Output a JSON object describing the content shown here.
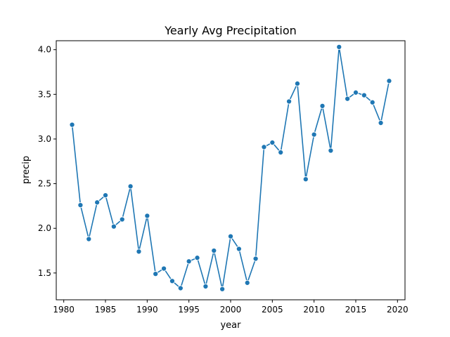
{
  "chart_data": {
    "type": "line",
    "title": "Yearly Avg Precipitation",
    "xlabel": "year",
    "ylabel": "precip",
    "xlim": [
      1979.1,
      2020.9
    ],
    "ylim": [
      1.2,
      4.1
    ],
    "xticks": [
      1980,
      1985,
      1990,
      1995,
      2000,
      2005,
      2010,
      2015,
      2020
    ],
    "xtick_labels": [
      "1980",
      "1985",
      "1990",
      "1995",
      "2000",
      "2005",
      "2010",
      "2015",
      "2020"
    ],
    "yticks": [
      1.5,
      2.0,
      2.5,
      3.0,
      3.5,
      4.0
    ],
    "ytick_labels": [
      "1.5",
      "2.0",
      "2.5",
      "3.0",
      "3.5",
      "4.0"
    ],
    "grid": false,
    "series": [
      {
        "color": "#1f77b4",
        "marker": "circle",
        "x": [
          1981,
          1982,
          1983,
          1984,
          1985,
          1986,
          1987,
          1988,
          1989,
          1990,
          1991,
          1992,
          1993,
          1994,
          1995,
          1996,
          1997,
          1998,
          1999,
          2000,
          2001,
          2002,
          2003,
          2004,
          2005,
          2006,
          2007,
          2008,
          2009,
          2010,
          2011,
          2012,
          2013,
          2014,
          2015,
          2016,
          2017,
          2018,
          2019
        ],
        "y": [
          3.16,
          2.26,
          1.88,
          2.29,
          2.37,
          2.02,
          2.1,
          2.47,
          1.74,
          2.14,
          1.49,
          1.55,
          1.41,
          1.33,
          1.63,
          1.67,
          1.35,
          1.75,
          1.32,
          1.91,
          1.77,
          1.39,
          1.66,
          2.91,
          2.96,
          2.85,
          3.42,
          3.62,
          2.55,
          3.05,
          3.37,
          2.87,
          4.03,
          3.45,
          3.52,
          3.49,
          3.41,
          3.18,
          3.65
        ]
      }
    ]
  }
}
